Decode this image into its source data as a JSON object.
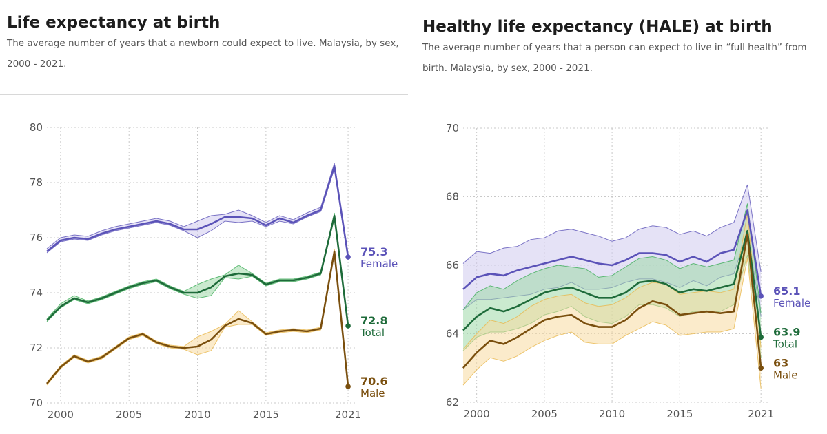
{
  "colors": {
    "female": "#5b53b8",
    "female_band": "#cfcbee",
    "total": "#1e6b3a",
    "total_band": "#9fd9a8",
    "male": "#7a4f0e",
    "male_band": "#f8dba0",
    "male_band_line": "#e8b84d",
    "grid": "#c8c8c8"
  },
  "charts": [
    {
      "title": "Life expectancy at birth",
      "subtitle": "The average number of years that a newborn could expect to live. Malaysia, by sex, 2000 - 2021."
    },
    {
      "title": "Healthy life expectancy (HALE) at birth",
      "subtitle": "The average number of years that a person can expect to live in “full health” from birth. Malaysia, by sex, 2000 - 2021."
    }
  ],
  "chart_data": [
    {
      "type": "line",
      "title": "Life expectancy at birth",
      "x": [
        1999,
        2000,
        2001,
        2002,
        2003,
        2004,
        2005,
        2006,
        2007,
        2008,
        2009,
        2010,
        2011,
        2012,
        2013,
        2014,
        2015,
        2016,
        2017,
        2018,
        2019,
        2020,
        2021
      ],
      "xlim": [
        1999,
        2021.5
      ],
      "xticks": [
        2000,
        2005,
        2010,
        2015,
        2021
      ],
      "ylim": [
        70,
        80
      ],
      "yticks": [
        70,
        72,
        74,
        76,
        78,
        80
      ],
      "grid": true,
      "series": [
        {
          "name": "Female",
          "values": [
            75.5,
            75.9,
            76.0,
            75.95,
            76.15,
            76.3,
            76.4,
            76.5,
            76.6,
            76.5,
            76.3,
            76.3,
            76.5,
            76.75,
            76.75,
            76.7,
            76.45,
            76.7,
            76.55,
            76.8,
            77.0,
            78.6,
            75.3
          ],
          "lower": [
            75.45,
            75.85,
            75.95,
            75.9,
            76.1,
            76.25,
            76.35,
            76.45,
            76.55,
            76.45,
            76.25,
            76.0,
            76.25,
            76.6,
            76.55,
            76.6,
            76.4,
            76.6,
            76.5,
            76.75,
            76.95,
            78.5,
            75.2
          ],
          "upper": [
            75.6,
            76.0,
            76.1,
            76.05,
            76.25,
            76.4,
            76.5,
            76.6,
            76.7,
            76.6,
            76.4,
            76.6,
            76.8,
            76.85,
            77.0,
            76.8,
            76.55,
            76.8,
            76.65,
            76.9,
            77.1,
            78.7,
            75.4
          ],
          "end_value": "75.3",
          "end_label": "Female"
        },
        {
          "name": "Total",
          "values": [
            73.0,
            73.5,
            73.8,
            73.65,
            73.8,
            74.0,
            74.2,
            74.35,
            74.45,
            74.2,
            74.0,
            74.0,
            74.2,
            74.6,
            74.7,
            74.65,
            74.3,
            74.45,
            74.45,
            74.55,
            74.7,
            76.8,
            72.8
          ],
          "lower": [
            72.95,
            73.45,
            73.75,
            73.6,
            73.75,
            73.95,
            74.15,
            74.3,
            74.4,
            74.15,
            73.95,
            73.8,
            73.9,
            74.55,
            74.5,
            74.6,
            74.25,
            74.4,
            74.4,
            74.5,
            74.65,
            76.7,
            72.7
          ],
          "upper": [
            73.05,
            73.6,
            73.9,
            73.7,
            73.85,
            74.05,
            74.25,
            74.4,
            74.5,
            74.25,
            74.05,
            74.3,
            74.5,
            74.65,
            75.0,
            74.7,
            74.35,
            74.5,
            74.5,
            74.6,
            74.75,
            76.9,
            72.9
          ],
          "end_value": "72.8",
          "end_label": "Total"
        },
        {
          "name": "Male",
          "values": [
            70.7,
            71.3,
            71.7,
            71.5,
            71.65,
            72.0,
            72.35,
            72.5,
            72.2,
            72.05,
            72.0,
            72.05,
            72.3,
            72.8,
            73.05,
            72.9,
            72.5,
            72.6,
            72.65,
            72.6,
            72.7,
            75.5,
            70.6
          ],
          "lower": [
            70.65,
            71.25,
            71.65,
            71.45,
            71.6,
            71.95,
            72.3,
            72.45,
            72.15,
            72.0,
            71.95,
            71.75,
            71.9,
            72.75,
            72.85,
            72.85,
            72.45,
            72.55,
            72.6,
            72.55,
            72.65,
            75.4,
            70.5
          ],
          "upper": [
            70.75,
            71.35,
            71.75,
            71.55,
            71.7,
            72.05,
            72.4,
            72.55,
            72.25,
            72.1,
            72.05,
            72.4,
            72.6,
            72.85,
            73.35,
            72.95,
            72.55,
            72.65,
            72.7,
            72.65,
            72.75,
            75.6,
            70.7
          ],
          "end_value": "70.6",
          "end_label": "Male"
        }
      ]
    },
    {
      "type": "line",
      "title": "Healthy life expectancy (HALE) at birth",
      "x": [
        1999,
        2000,
        2001,
        2002,
        2003,
        2004,
        2005,
        2006,
        2007,
        2008,
        2009,
        2010,
        2011,
        2012,
        2013,
        2014,
        2015,
        2016,
        2017,
        2018,
        2019,
        2020,
        2021
      ],
      "xlim": [
        1999,
        2021.5
      ],
      "xticks": [
        2000,
        2005,
        2010,
        2015,
        2021
      ],
      "ylim": [
        62,
        70
      ],
      "yticks": [
        62,
        64,
        66,
        68,
        70
      ],
      "grid": true,
      "series": [
        {
          "name": "Female",
          "values": [
            65.3,
            65.65,
            65.75,
            65.7,
            65.85,
            65.95,
            66.05,
            66.15,
            66.25,
            66.15,
            66.05,
            66.0,
            66.15,
            66.35,
            66.35,
            66.3,
            66.1,
            66.25,
            66.1,
            66.35,
            66.45,
            67.6,
            65.1
          ],
          "lower": [
            64.7,
            65.0,
            65.0,
            65.05,
            65.1,
            65.15,
            65.3,
            65.35,
            65.5,
            65.3,
            65.3,
            65.35,
            65.5,
            65.6,
            65.6,
            65.5,
            65.35,
            65.55,
            65.4,
            65.65,
            65.75,
            67.0,
            64.5
          ],
          "upper": [
            66.05,
            66.4,
            66.35,
            66.5,
            66.55,
            66.75,
            66.8,
            67.0,
            67.05,
            66.95,
            66.85,
            66.7,
            66.8,
            67.05,
            67.15,
            67.1,
            66.9,
            67.0,
            66.85,
            67.1,
            67.25,
            68.35,
            65.8
          ],
          "end_value": "65.1",
          "end_label": "Female"
        },
        {
          "name": "Total",
          "values": [
            64.1,
            64.5,
            64.75,
            64.65,
            64.8,
            65.0,
            65.2,
            65.3,
            65.35,
            65.2,
            65.05,
            65.05,
            65.2,
            65.5,
            65.55,
            65.45,
            65.2,
            65.3,
            65.25,
            65.35,
            65.45,
            67.0,
            63.9
          ],
          "lower": [
            63.5,
            63.9,
            64.05,
            64.05,
            64.15,
            64.3,
            64.55,
            64.65,
            64.8,
            64.5,
            64.35,
            64.3,
            64.5,
            64.85,
            64.85,
            64.75,
            64.5,
            64.65,
            64.6,
            64.65,
            64.85,
            66.3,
            63.3
          ],
          "upper": [
            64.7,
            65.2,
            65.4,
            65.3,
            65.55,
            65.75,
            65.9,
            66.0,
            65.95,
            65.9,
            65.65,
            65.7,
            65.95,
            66.2,
            66.25,
            66.15,
            65.9,
            66.05,
            65.95,
            66.05,
            66.15,
            67.8,
            64.6
          ],
          "end_value": "63.9",
          "end_label": "Total"
        },
        {
          "name": "Male",
          "values": [
            63.0,
            63.45,
            63.8,
            63.7,
            63.9,
            64.15,
            64.4,
            64.5,
            64.55,
            64.3,
            64.2,
            64.2,
            64.4,
            64.75,
            64.95,
            64.85,
            64.55,
            64.6,
            64.65,
            64.6,
            64.65,
            66.9,
            63.0
          ],
          "lower": [
            62.5,
            62.95,
            63.3,
            63.2,
            63.35,
            63.6,
            63.8,
            63.95,
            64.05,
            63.75,
            63.7,
            63.7,
            63.95,
            64.15,
            64.35,
            64.25,
            63.95,
            64.0,
            64.05,
            64.05,
            64.15,
            66.2,
            62.4
          ],
          "upper": [
            63.55,
            64.0,
            64.4,
            64.3,
            64.5,
            64.8,
            65.0,
            65.1,
            65.15,
            64.9,
            64.8,
            64.85,
            65.05,
            65.35,
            65.5,
            65.45,
            65.15,
            65.2,
            65.25,
            65.2,
            65.3,
            67.5,
            63.6
          ],
          "end_value": "63",
          "end_label": "Male"
        }
      ]
    }
  ]
}
